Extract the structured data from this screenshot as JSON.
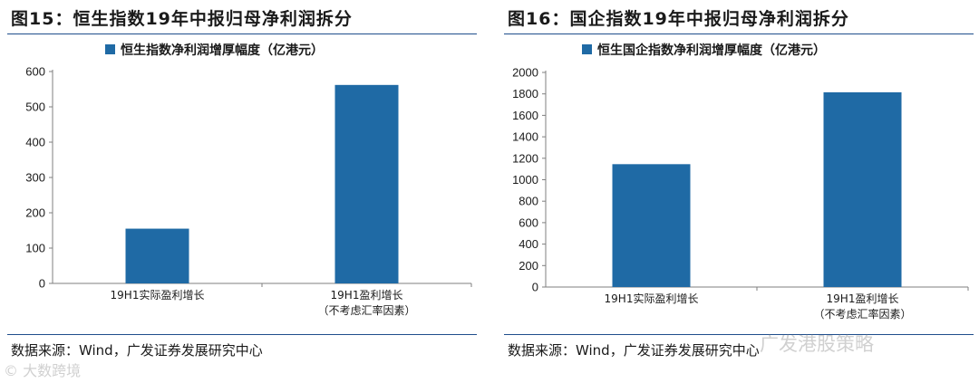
{
  "left": {
    "title": "图15：恒生指数19年中报归母净利润拆分",
    "source": "数据来源：Wind，广发证券发展研究中心",
    "chart_data": {
      "type": "bar",
      "legend": "恒生指数净利润增厚幅度（亿港元）",
      "categories": [
        [
          "19H1实际盈利增长"
        ],
        [
          "19H1盈利增长",
          "（不考虑汇率因素）"
        ]
      ],
      "values": [
        155,
        562
      ],
      "ylim": [
        0,
        600
      ],
      "yticks": [
        0,
        100,
        200,
        300,
        400,
        500,
        600
      ],
      "color": "#1f6aa5",
      "legend_position": "top"
    }
  },
  "right": {
    "title": "图16：国企指数19年中报归母净利润拆分",
    "source": "数据来源：Wind，广发证券发展研究中心",
    "chart_data": {
      "type": "bar",
      "legend": "恒生国企指数净利润增厚幅度（亿港元）",
      "categories": [
        [
          "19H1实际盈利增长"
        ],
        [
          "19H1盈利增长",
          "（不考虑汇率因素）"
        ]
      ],
      "values": [
        1145,
        1815
      ],
      "ylim": [
        0,
        2000
      ],
      "yticks": [
        0,
        200,
        400,
        600,
        800,
        1000,
        1200,
        1400,
        1600,
        1800,
        2000
      ],
      "color": "#1f6aa5",
      "legend_position": "top"
    }
  },
  "watermarks": {
    "left": "© 大数跨境",
    "right": "广发港股策略"
  }
}
